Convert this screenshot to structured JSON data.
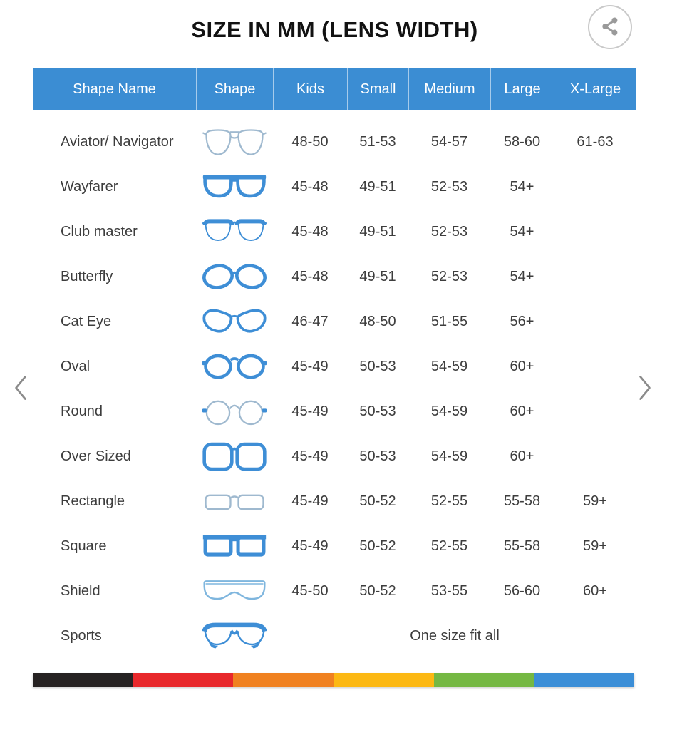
{
  "page": {
    "title": "SIZE IN MM (LENS WIDTH)"
  },
  "share": {
    "icon": "share-icon"
  },
  "carousel": {
    "prev_icon": "chevron-left-icon",
    "next_icon": "chevron-right-icon"
  },
  "table": {
    "headers": [
      "Shape Name",
      "Shape",
      "Kids",
      "Small",
      "Medium",
      "Large",
      "X-Large"
    ],
    "rows": [
      {
        "name": "Aviator/ Navigator",
        "icon": "aviator-glasses-icon",
        "kids": "48-50",
        "small": "51-53",
        "medium": "54-57",
        "large": "58-60",
        "xlarge": "61-63"
      },
      {
        "name": "Wayfarer",
        "icon": "wayfarer-glasses-icon",
        "kids": "45-48",
        "small": "49-51",
        "medium": "52-53",
        "large": "54+",
        "xlarge": ""
      },
      {
        "name": "Club master",
        "icon": "clubmaster-glasses-icon",
        "kids": "45-48",
        "small": "49-51",
        "medium": "52-53",
        "large": "54+",
        "xlarge": ""
      },
      {
        "name": "Butterfly",
        "icon": "butterfly-glasses-icon",
        "kids": "45-48",
        "small": "49-51",
        "medium": "52-53",
        "large": "54+",
        "xlarge": ""
      },
      {
        "name": "Cat Eye",
        "icon": "cateye-glasses-icon",
        "kids": "46-47",
        "small": "48-50",
        "medium": "51-55",
        "large": "56+",
        "xlarge": ""
      },
      {
        "name": "Oval",
        "icon": "oval-glasses-icon",
        "kids": "45-49",
        "small": "50-53",
        "medium": "54-59",
        "large": "60+",
        "xlarge": ""
      },
      {
        "name": "Round",
        "icon": "round-glasses-icon",
        "kids": "45-49",
        "small": "50-53",
        "medium": "54-59",
        "large": "60+",
        "xlarge": ""
      },
      {
        "name": "Over Sized",
        "icon": "oversized-glasses-icon",
        "kids": "45-49",
        "small": "50-53",
        "medium": "54-59",
        "large": "60+",
        "xlarge": ""
      },
      {
        "name": "Rectangle",
        "icon": "rectangle-glasses-icon",
        "kids": "45-49",
        "small": "50-52",
        "medium": "52-55",
        "large": "55-58",
        "xlarge": "59+"
      },
      {
        "name": "Square",
        "icon": "square-glasses-icon",
        "kids": "45-49",
        "small": "50-52",
        "medium": "52-55",
        "large": "55-58",
        "xlarge": "59+"
      },
      {
        "name": "Shield",
        "icon": "shield-glasses-icon",
        "kids": "45-50",
        "small": "50-52",
        "medium": "53-55",
        "large": "56-60",
        "xlarge": "60+"
      },
      {
        "name": "Sports",
        "icon": "sports-glasses-icon",
        "span_text": "One size fit all"
      }
    ]
  },
  "footer_bar": {
    "colors": [
      "#262222",
      "#e8282b",
      "#f08120",
      "#fcb813",
      "#75b843",
      "#3b8ed7"
    ]
  },
  "colors": {
    "header_bg": "#3b8dd3",
    "header_text": "#ffffff",
    "body_text": "#3d3d3d",
    "frame_blue": "#3e8ed6",
    "frame_light": "#9fb9cf",
    "shield_light": "#7fb6de",
    "chevron_gray": "#8b8b8b",
    "share_gray": "#9a9a9a"
  }
}
